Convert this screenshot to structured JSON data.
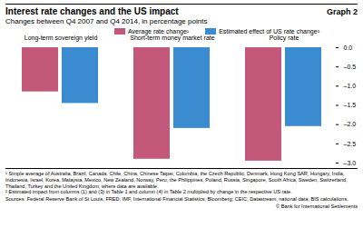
{
  "chart_data": {
    "type": "bar",
    "title": "Interest rate changes and the US impact",
    "graph_number": "Graph 2",
    "subtitle": "Changes between Q4 2007 and Q4 2014, in percentage points",
    "categories": [
      "Long-term sovereign yield",
      "Short-term money market rate",
      "Policy rate"
    ],
    "series": [
      {
        "name": "Average rate change¹",
        "color": "#c4587a",
        "values": [
          -1.15,
          -2.9,
          -2.95
        ]
      },
      {
        "name": "Estimated effect of US rate change²",
        "color": "#3a8bd0",
        "values": [
          -1.45,
          -2.1,
          -2.05
        ]
      }
    ],
    "ylim": [
      -3.0,
      0.0
    ],
    "yticks": [
      {
        "value": 0.0,
        "label": "0.0"
      },
      {
        "value": -0.5,
        "label": "–0.5"
      },
      {
        "value": -1.0,
        "label": "–1.0"
      },
      {
        "value": -1.5,
        "label": "–1.5"
      },
      {
        "value": -2.0,
        "label": "–2.0"
      },
      {
        "value": -2.5,
        "label": "–2.5"
      },
      {
        "value": -3.0,
        "label": "–3.0"
      }
    ],
    "grid": false,
    "legend": "top",
    "notes": [
      "¹ Simple average of Australia, Brazil, Canada, Chile, China, Chinese Taipei, Colombia, the Czech Republic, Denmark, Hong Kong SAR, Hungary, India, Indonesia, Israel, Korea, Malaysia, Mexico, New Zealand, Norway, Peru, the Philippines, Poland, Russia, Singapore, South Africa, Sweden, Switzerland, Thailand, Turkey and the United Kingdom; where data are available.",
      "² Estimated impact from columns (1) and (3) in Table 1 and column (4) in Table 2 multiplied by change in the respective US rate."
    ],
    "sources": "Sources: Federal Reserve Bank of St Louis, FRED; IMF, International Financial Statistics; Bloomberg; CEIC; Datastream; national data; BIS calculations.",
    "copyright": "© Bank for International Settlements"
  }
}
